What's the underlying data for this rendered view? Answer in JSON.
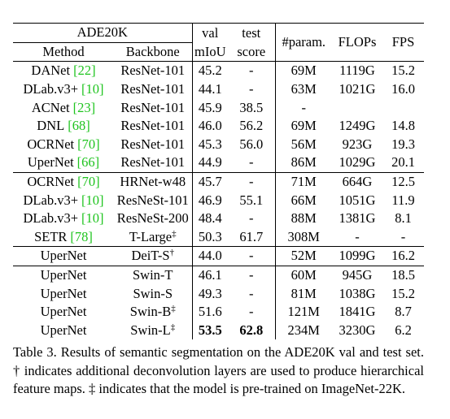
{
  "table": {
    "header": {
      "group": "ADE20K",
      "method": "Method",
      "backbone": "Backbone",
      "val": "val",
      "val_sub": "mIoU",
      "test": "test",
      "test_sub": "score",
      "param": "#param.",
      "flops": "FLOPs",
      "fps": "FPS"
    },
    "groups": [
      {
        "rows": [
          {
            "method": "DANet",
            "cite": "[22]",
            "backbone": "ResNet-101",
            "val": "45.2",
            "test": "-",
            "param": "69M",
            "flops": "1119G",
            "fps": "15.2"
          },
          {
            "method": "DLab.v3+",
            "cite": "[10]",
            "backbone": "ResNet-101",
            "val": "44.1",
            "test": "-",
            "param": "63M",
            "flops": "1021G",
            "fps": "16.0"
          },
          {
            "method": "ACNet",
            "cite": "[23]",
            "backbone": "ResNet-101",
            "val": "45.9",
            "test": "38.5",
            "param": "-",
            "flops": null,
            "fps": null
          },
          {
            "method": "DNL",
            "cite": "[68]",
            "backbone": "ResNet-101",
            "val": "46.0",
            "test": "56.2",
            "param": "69M",
            "flops": "1249G",
            "fps": "14.8"
          },
          {
            "method": "OCRNet",
            "cite": "[70]",
            "backbone": "ResNet-101",
            "val": "45.3",
            "test": "56.0",
            "param": "56M",
            "flops": "923G",
            "fps": "19.3"
          },
          {
            "method": "UperNet",
            "cite": "[66]",
            "backbone": "ResNet-101",
            "val": "44.9",
            "test": "-",
            "param": "86M",
            "flops": "1029G",
            "fps": "20.1"
          }
        ]
      },
      {
        "rows": [
          {
            "method": "OCRNet",
            "cite": "[70]",
            "backbone": "HRNet-w48",
            "val": "45.7",
            "test": "-",
            "param": "71M",
            "flops": "664G",
            "fps": "12.5"
          },
          {
            "method": "DLab.v3+",
            "cite": "[10]",
            "backbone": "ResNeSt-101",
            "val": "46.9",
            "test": "55.1",
            "param": "66M",
            "flops": "1051G",
            "fps": "11.9"
          },
          {
            "method": "DLab.v3+",
            "cite": "[10]",
            "backbone": "ResNeSt-200",
            "val": "48.4",
            "test": "-",
            "param": "88M",
            "flops": "1381G",
            "fps": "8.1"
          },
          {
            "method": "SETR",
            "cite": "[78]",
            "backbone": "T-Large",
            "sup": "‡",
            "val": "50.3",
            "test": "61.7",
            "param": "308M",
            "flops": "-",
            "fps": "-"
          }
        ]
      },
      {
        "rows": [
          {
            "method": "UperNet",
            "backbone": "DeiT-S",
            "sup": "†",
            "val": "44.0",
            "test": "-",
            "param": "52M",
            "flops": "1099G",
            "fps": "16.2"
          }
        ]
      },
      {
        "rows": [
          {
            "method": "UperNet",
            "backbone": "Swin-T",
            "val": "46.1",
            "test": "-",
            "param": "60M",
            "flops": "945G",
            "fps": "18.5"
          },
          {
            "method": "UperNet",
            "backbone": "Swin-S",
            "val": "49.3",
            "test": "-",
            "param": "81M",
            "flops": "1038G",
            "fps": "15.2"
          },
          {
            "method": "UperNet",
            "backbone": "Swin-B",
            "sup": "‡",
            "val": "51.6",
            "test": "-",
            "param": "121M",
            "flops": "1841G",
            "fps": "8.7"
          },
          {
            "method": "UperNet",
            "backbone": "Swin-L",
            "sup": "‡",
            "val": "53.5",
            "test": "62.8",
            "param": "234M",
            "flops": "3230G",
            "fps": "6.2",
            "bold": [
              "val",
              "test"
            ]
          }
        ]
      }
    ]
  },
  "caption": "Table 3. Results of semantic segmentation on the ADE20K val and test set. † indicates additional deconvolution layers are used to produce hierarchical feature maps. ‡ indicates that the model is pre-trained on ImageNet-22K."
}
